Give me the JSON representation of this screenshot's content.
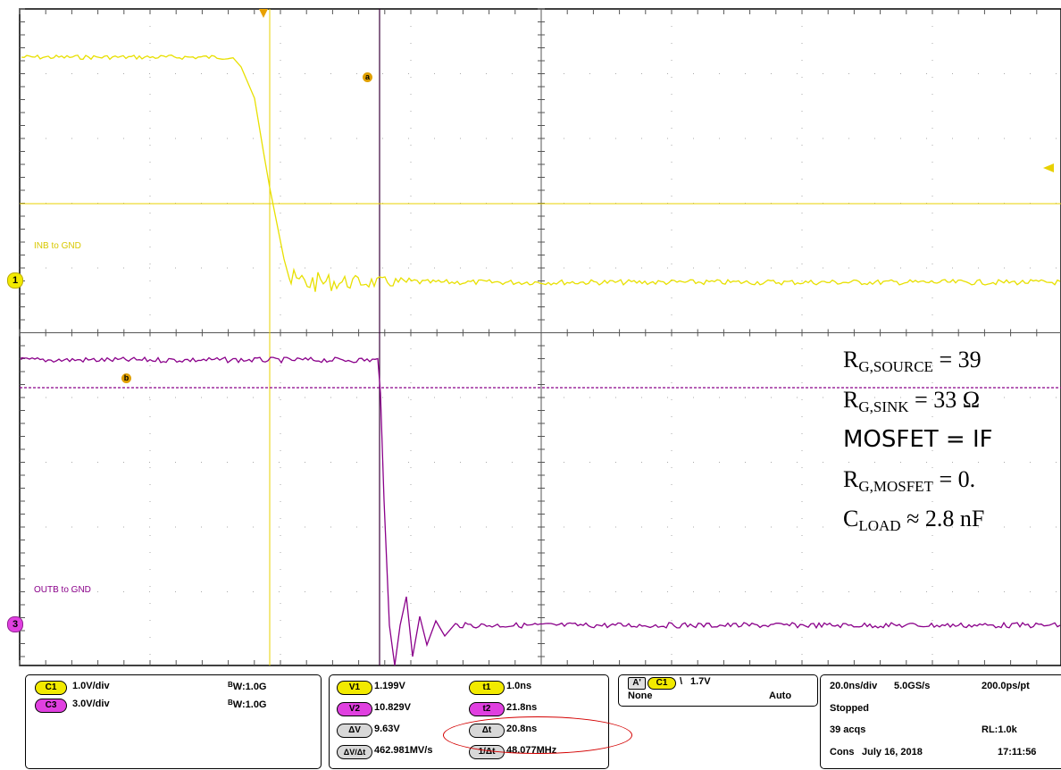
{
  "waveforms": {
    "ch1_label": "INB to GND",
    "ch3_label": "OUTB to GND",
    "ch1_marker": "1",
    "ch3_marker": "3",
    "ch1_color": "#e8e000",
    "ch3_color": "#8a008a",
    "cursor_a": "a",
    "cursor_b": "b"
  },
  "overlay": {
    "line1_main": "R",
    "line1_sub": "G,SOURCE",
    "line1_rest": " = 39",
    "line2_main": "R",
    "line2_sub": "G,SINK",
    "line2_rest": " = 33 Ω",
    "line3": "MOSFET = IF",
    "line4_main": "R",
    "line4_sub": "G,MOSFET",
    "line4_rest": " = 0.",
    "line5_main": "C",
    "line5_sub": "LOAD",
    "line5_rest": " ≈ 2.8 nF"
  },
  "channels": {
    "c1_badge": "C1",
    "c1_scale": "1.0V/div",
    "c1_bw": "1.0G",
    "c3_badge": "C3",
    "c3_scale": "3.0V/div",
    "c3_bw": "1.0G",
    "bw_prefix": "B",
    "bw_sub": "W",
    "bw_suffix": ":"
  },
  "cursors": {
    "v1_badge": "V1",
    "v1_value": "1.199V",
    "v2_badge": "V2",
    "v2_value": "10.829V",
    "dv_badge": "ΔV",
    "dv_value": "9.63V",
    "dvdt_badge": "ΔV/Δt",
    "dvdt_value": "462.981MV/s",
    "t1_badge": "t1",
    "t1_value": "1.0ns",
    "t2_badge": "t2",
    "t2_value": "21.8ns",
    "dt_badge": "Δt",
    "dt_value": "20.8ns",
    "inv_dt_badge": "1/Δt",
    "inv_dt_value": "48.077MHz"
  },
  "trigger": {
    "a_badge": "A'",
    "source_badge": "C1",
    "slope": "\\",
    "level": "1.7V",
    "mode": "None",
    "coupling": "Auto"
  },
  "acquisition": {
    "timebase": "20.0ns/div",
    "sample_rate": "5.0GS/s",
    "resolution": "200.0ps/pt",
    "state": "Stopped",
    "acqs": "39 acqs",
    "record_length": "RL:1.0k",
    "mode": "Cons",
    "date": "July 16, 2018",
    "time": "17:11:56"
  }
}
